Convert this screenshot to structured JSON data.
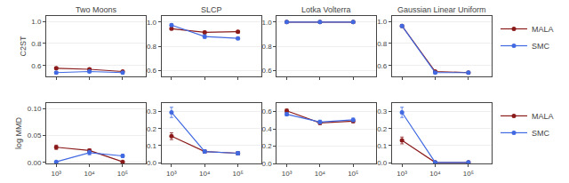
{
  "chart_data": [
    {
      "type": "line",
      "title": "Two Moons",
      "ylabel": "C2ST",
      "log": "x",
      "grid": "y",
      "tick_labels": "y",
      "marker": "circle",
      "x": [
        1000,
        10000,
        100000
      ],
      "xlim": [
        500,
        500000
      ],
      "xticks": [
        1000,
        10000,
        100000
      ],
      "ylim": [
        0.5,
        1.05
      ],
      "yticks": [
        0.6,
        0.8,
        {
          "value": 1.0,
          "label": "1.0"
        }
      ],
      "series": [
        {
          "name": "MALA",
          "color": "#8B1A1A",
          "values": [
            0.575,
            0.565,
            0.545
          ],
          "errors": [
            0.01,
            0.01,
            0.008
          ]
        },
        {
          "name": "SMC",
          "color": "#4169E1",
          "values": [
            0.535,
            0.545,
            0.535
          ],
          "errors": [
            0.01,
            0.01,
            0.008
          ]
        }
      ]
    },
    {
      "type": "line",
      "title": "SLCP",
      "log": "x",
      "grid": "y",
      "tick_labels": "y",
      "marker": "circle",
      "x": [
        1000,
        10000,
        100000
      ],
      "xlim": [
        500,
        500000
      ],
      "xticks": [
        1000,
        10000,
        100000
      ],
      "ylim": [
        0.55,
        1.05
      ],
      "yticks": [
        0.6,
        0.8,
        {
          "value": 1.0,
          "label": "1.0"
        }
      ],
      "series": [
        {
          "name": "MALA",
          "color": "#8B1A1A",
          "values": [
            0.945,
            0.915,
            0.92
          ],
          "errors": [
            0.01,
            0.01,
            0.01
          ]
        },
        {
          "name": "SMC",
          "color": "#4169E1",
          "values": [
            0.975,
            0.88,
            0.865
          ],
          "errors": [
            0.01,
            0.015,
            0.01
          ]
        }
      ]
    },
    {
      "type": "line",
      "title": "Lotka Volterra",
      "log": "x",
      "grid": "y",
      "tick_labels": "y",
      "marker": "circle",
      "x": [
        1000,
        10000,
        100000
      ],
      "xlim": [
        500,
        500000
      ],
      "xticks": [
        1000,
        10000,
        100000
      ],
      "ylim": [
        0.55,
        1.05
      ],
      "yticks": [
        0.6,
        0.8,
        {
          "value": 1.0,
          "label": "1.0"
        }
      ],
      "series": [
        {
          "name": "MALA",
          "color": "#8B1A1A",
          "values": [
            1.0,
            1.0,
            1.0
          ],
          "errors": [
            0.001,
            0.001,
            0.001
          ]
        },
        {
          "name": "SMC",
          "color": "#4169E1",
          "values": [
            1.0,
            1.0,
            1.0
          ],
          "errors": [
            0.001,
            0.001,
            0.001
          ]
        }
      ]
    },
    {
      "type": "line",
      "title": "Gaussian Linear Uniform",
      "log": "x",
      "grid": "y",
      "tick_labels": "y",
      "marker": "circle",
      "legend": "right",
      "x": [
        1000,
        10000,
        100000
      ],
      "xlim": [
        500,
        500000
      ],
      "xticks": [
        1000,
        10000,
        100000
      ],
      "ylim": [
        0.5,
        1.05
      ],
      "yticks": [
        0.6,
        0.8,
        {
          "value": 1.0,
          "label": "1.0"
        }
      ],
      "series": [
        {
          "name": "MALA",
          "color": "#8B1A1A",
          "values": [
            0.96,
            0.545,
            0.535
          ],
          "errors": [
            0.01,
            0.008,
            0.008
          ]
        },
        {
          "name": "SMC",
          "color": "#4169E1",
          "values": [
            0.96,
            0.535,
            0.535
          ],
          "errors": [
            0.01,
            0.008,
            0.008
          ]
        }
      ]
    },
    {
      "type": "line",
      "ylabel": "log MMD",
      "log": "x",
      "grid": "y",
      "marker": "circle",
      "x": [
        1000,
        10000,
        100000
      ],
      "xlim": [
        500,
        500000
      ],
      "xticks": [
        {
          "value": 1000,
          "label": "10³"
        },
        {
          "value": 10000,
          "label": "10⁴"
        },
        {
          "value": 100000,
          "label": "10⁵"
        }
      ],
      "ylim": [
        -0.002,
        0.11
      ],
      "yticks": [
        {
          "value": 0.0,
          "label": "0.00"
        },
        0.05,
        {
          "value": 0.1,
          "label": "0.10"
        }
      ],
      "series": [
        {
          "name": "MALA",
          "color": "#8B1A1A",
          "values": [
            0.028,
            0.022,
            0.001
          ],
          "errors": [
            0.004,
            0.003,
            0.001
          ]
        },
        {
          "name": "SMC",
          "color": "#4169E1",
          "values": [
            0.001,
            0.018,
            0.012
          ],
          "errors": [
            0.001,
            0.004,
            0.003
          ]
        }
      ]
    },
    {
      "type": "line",
      "log": "x",
      "grid": "y",
      "marker": "circle",
      "x": [
        1000,
        10000,
        100000
      ],
      "xlim": [
        500,
        500000
      ],
      "xticks": [
        {
          "value": 1000,
          "label": "10³"
        },
        {
          "value": 10000,
          "label": "10⁴"
        },
        {
          "value": 100000,
          "label": "10⁵"
        }
      ],
      "ylim": [
        -0.005,
        0.35
      ],
      "yticks": [
        {
          "value": 0.0,
          "label": "0.0"
        },
        0.1,
        0.2,
        0.3
      ],
      "series": [
        {
          "name": "MALA",
          "color": "#8B1A1A",
          "values": [
            0.155,
            0.065,
            0.055
          ],
          "errors": [
            0.02,
            0.01,
            0.01
          ]
        },
        {
          "name": "SMC",
          "color": "#4169E1",
          "values": [
            0.295,
            0.065,
            0.055
          ],
          "errors": [
            0.03,
            0.01,
            0.01
          ]
        }
      ]
    },
    {
      "type": "line",
      "log": "x",
      "grid": "y",
      "marker": "circle",
      "x": [
        1000,
        10000,
        100000
      ],
      "xlim": [
        500,
        500000
      ],
      "xticks": [
        {
          "value": 1000,
          "label": "10³"
        },
        {
          "value": 10000,
          "label": "10⁴"
        },
        {
          "value": 100000,
          "label": "10⁵"
        }
      ],
      "ylim": [
        0.0,
        0.7
      ],
      "yticks": [
        {
          "value": 0.0,
          "label": "0.0"
        },
        0.2,
        0.4,
        0.6
      ],
      "series": [
        {
          "name": "MALA",
          "color": "#8B1A1A",
          "values": [
            0.61,
            0.47,
            0.49
          ],
          "errors": [
            0.02,
            0.02,
            0.02
          ]
        },
        {
          "name": "SMC",
          "color": "#4169E1",
          "values": [
            0.57,
            0.48,
            0.505
          ],
          "errors": [
            0.02,
            0.02,
            0.02
          ]
        }
      ]
    },
    {
      "type": "line",
      "log": "x",
      "grid": "y",
      "marker": "circle",
      "legend": "right",
      "x": [
        1000,
        10000,
        100000
      ],
      "xlim": [
        500,
        500000
      ],
      "xticks": [
        {
          "value": 1000,
          "label": "10³"
        },
        {
          "value": 10000,
          "label": "10⁴"
        },
        {
          "value": 100000,
          "label": "10⁵"
        }
      ],
      "ylim": [
        -0.005,
        0.35
      ],
      "yticks": [
        {
          "value": 0.0,
          "label": "0.0"
        },
        0.1,
        0.2,
        0.3
      ],
      "series": [
        {
          "name": "MALA",
          "color": "#8B1A1A",
          "values": [
            0.13,
            0.001,
            0.001
          ],
          "errors": [
            0.02,
            0.001,
            0.001
          ]
        },
        {
          "name": "SMC",
          "color": "#4169E1",
          "values": [
            0.295,
            0.001,
            0.001
          ],
          "errors": [
            0.03,
            0.001,
            0.001
          ]
        }
      ]
    }
  ]
}
